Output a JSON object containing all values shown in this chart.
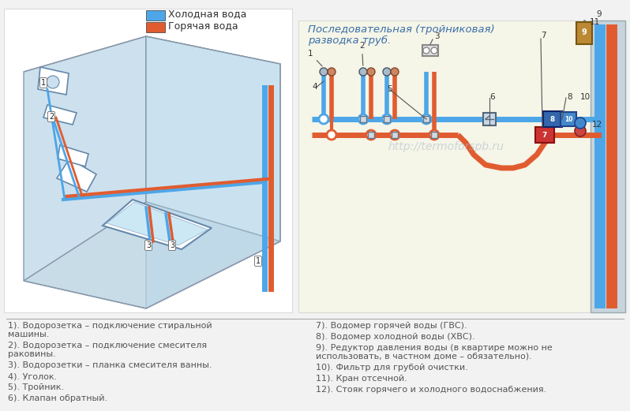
{
  "title_line1": "Последовательная (тройниковая)",
  "title_line2": "разводка труб.",
  "legend_cold": "Холодная вода",
  "legend_hot": "Горячая вода",
  "cold_color": "#4da6e8",
  "hot_color": "#e05c30",
  "bg_color": "#f2f2f2",
  "watermark": "http://termoforspb.ru",
  "left_text": [
    "1). Водорозетка – подключение стиральной\nмашины.",
    "2). Водорозетка – подключение смесителя\nраковины.",
    "3). Водорозетки – планка смесителя ванны.",
    "4). Уголок.",
    "5). Тройник.",
    "6). Клапан обратный."
  ],
  "right_text": [
    "7). Водомер горячей воды (ГВС).",
    "8). Водомер холодной воды (ХВС).",
    "9). Редуктор давления воды (в квартире можно не\nиспользовать, в частном доме – обязательно).",
    "10). Фильтр для грубой очистки.",
    "11). Кран отсечной.",
    "12). Стояк горячего и холодного водоснабжения."
  ],
  "font_size_text": 8.0,
  "font_size_title": 9.5,
  "font_size_legend": 9.0,
  "text_color": "#555555",
  "title_color": "#3a6fa8"
}
